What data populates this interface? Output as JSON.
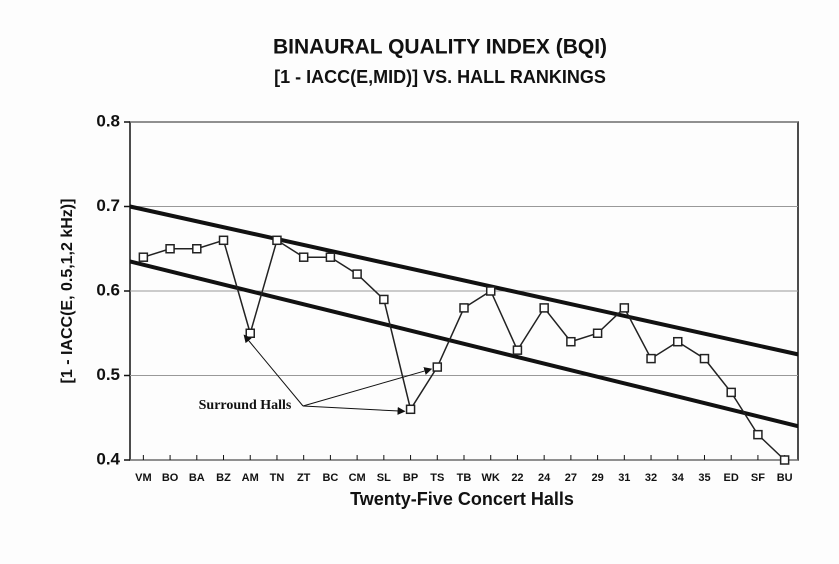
{
  "chart_data": {
    "type": "line",
    "title": "BINAURAL QUALITY INDEX (BQI)",
    "subtitle": "[1 - IACC(E,MID)] VS. HALL RANKINGS",
    "x_label": "Twenty-Five Concert Halls",
    "y_label": "[1 - IACC(E, 0.5,1,2 kHz)]",
    "categories": [
      "VM",
      "BO",
      "BA",
      "BZ",
      "AM",
      "TN",
      "ZT",
      "BC",
      "CM",
      "SL",
      "BP",
      "TS",
      "TB",
      "WK",
      "22",
      "24",
      "27",
      "29",
      "31",
      "32",
      "34",
      "35",
      "ED",
      "SF",
      "BU"
    ],
    "series": [
      {
        "color": "#222222",
        "values": [
          0.64,
          0.65,
          0.65,
          0.66,
          0.55,
          0.66,
          0.64,
          0.64,
          0.62,
          0.59,
          0.46,
          0.51,
          0.58,
          0.6,
          0.53,
          0.58,
          0.54,
          0.55,
          0.58,
          0.52,
          0.54,
          0.52,
          0.48,
          0.43,
          0.4
        ]
      }
    ],
    "trend_lines": [
      {
        "start": 0.7,
        "end": 0.525
      },
      {
        "start": 0.635,
        "end": 0.44
      }
    ],
    "annotation": {
      "text": "Surround Halls",
      "targets": [
        4,
        10,
        11
      ]
    },
    "ylim": [
      0.4,
      0.8
    ],
    "yticks": [
      0.4,
      0.5,
      0.6,
      0.7,
      0.8
    ],
    "grid": true
  }
}
